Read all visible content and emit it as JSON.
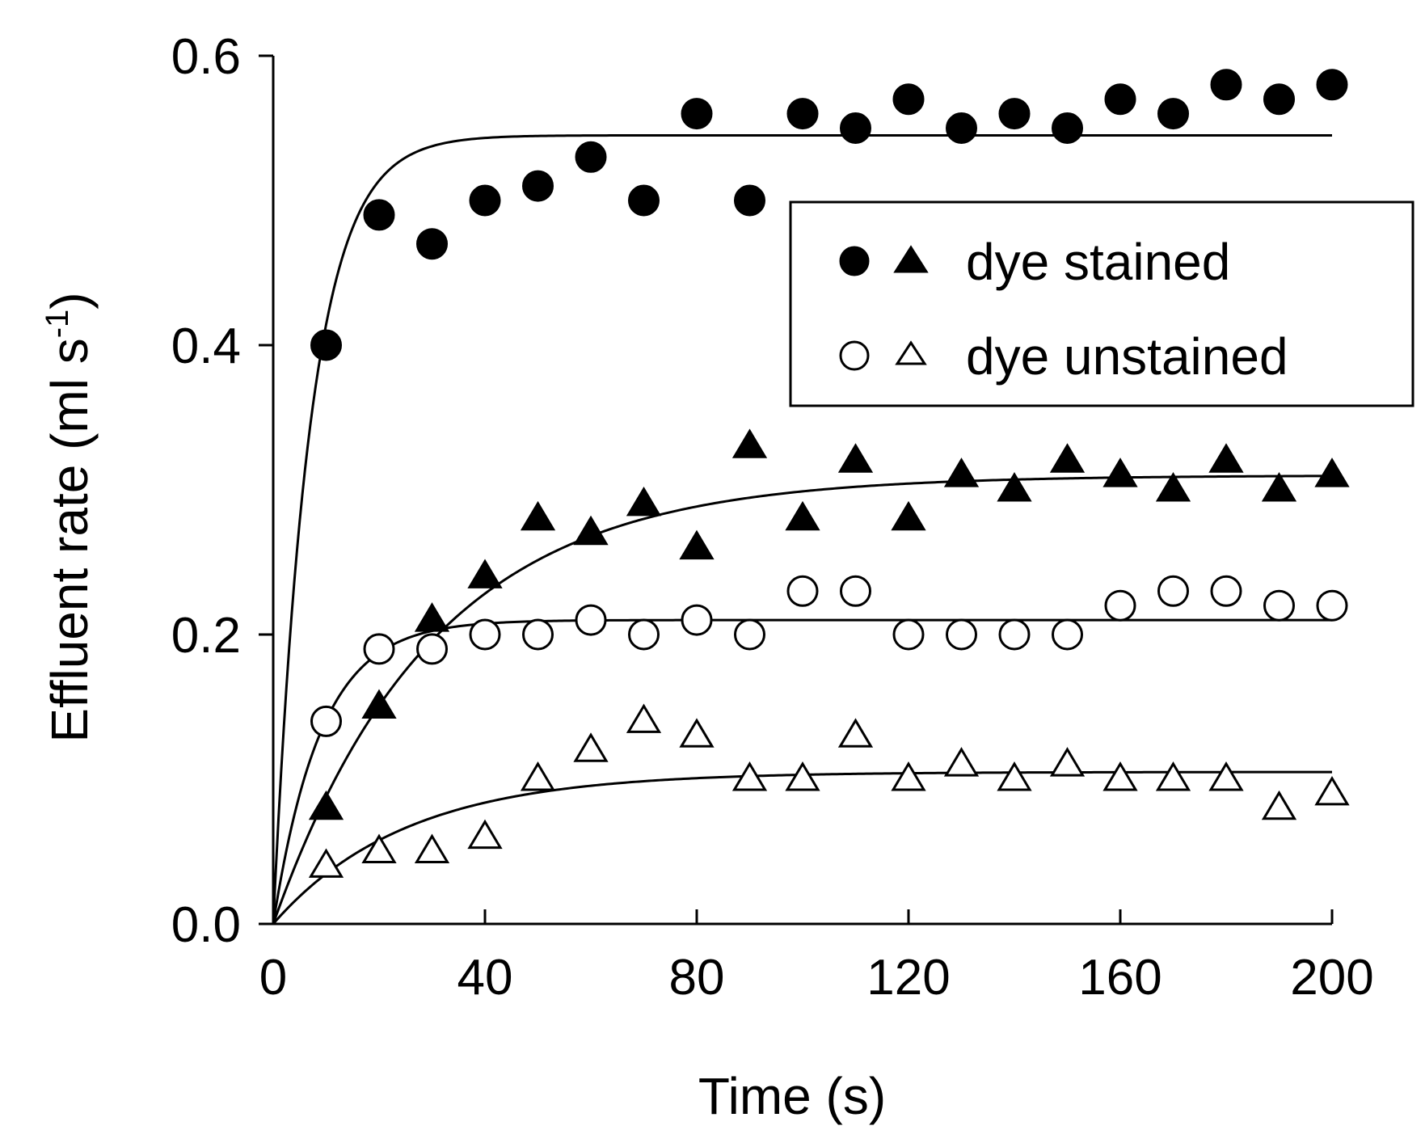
{
  "chart_data": {
    "type": "scatter",
    "title": "",
    "xlabel": "Time (s)",
    "ylabel_main": "Effluent rate (ml s",
    "ylabel_sup": "-1",
    "ylabel_close": ")",
    "xlim": [
      0,
      200
    ],
    "ylim": [
      0,
      0.6
    ],
    "xticks": [
      0,
      40,
      80,
      120,
      160,
      200
    ],
    "xtick_labels": [
      "0",
      "40",
      "80",
      "120",
      "160",
      "200"
    ],
    "yticks": [
      0,
      0.2,
      0.4,
      0.6
    ],
    "ytick_labels": [
      "0.0",
      "0.2",
      "0.4",
      "0.6"
    ],
    "grid": false,
    "legend": {
      "position": "top-right",
      "entries": [
        {
          "label": "dye stained",
          "markers": [
            "circle",
            "triangle"
          ],
          "fill": "filled"
        },
        {
          "label": "dye unstained",
          "markers": [
            "circle",
            "triangle"
          ],
          "fill": "open"
        }
      ]
    },
    "series": [
      {
        "name": "dye stained (circles)",
        "marker": "circle",
        "fill": "filled",
        "x": [
          10,
          20,
          30,
          40,
          50,
          60,
          70,
          80,
          90,
          100,
          110,
          120,
          130,
          140,
          150,
          160,
          170,
          180,
          190,
          200
        ],
        "y": [
          0.4,
          0.49,
          0.47,
          0.5,
          0.51,
          0.53,
          0.5,
          0.56,
          0.5,
          0.56,
          0.55,
          0.57,
          0.55,
          0.56,
          0.55,
          0.57,
          0.56,
          0.58,
          0.57,
          0.58
        ],
        "fit": {
          "model": "a*(1-exp(-t/tau))",
          "a": 0.545,
          "tau": 7
        }
      },
      {
        "name": "dye stained (triangles)",
        "marker": "triangle",
        "fill": "filled",
        "x": [
          10,
          20,
          30,
          40,
          50,
          60,
          70,
          80,
          90,
          100,
          110,
          120,
          130,
          140,
          150,
          160,
          170,
          180,
          190,
          200
        ],
        "y": [
          0.08,
          0.15,
          0.21,
          0.24,
          0.28,
          0.27,
          0.29,
          0.26,
          0.33,
          0.28,
          0.32,
          0.28,
          0.31,
          0.3,
          0.32,
          0.31,
          0.3,
          0.32,
          0.3,
          0.31
        ],
        "fit": {
          "model": "a*(1-exp(-t/tau))",
          "a": 0.31,
          "tau": 30
        }
      },
      {
        "name": "dye unstained (circles)",
        "marker": "circle",
        "fill": "open",
        "x": [
          10,
          20,
          30,
          40,
          50,
          60,
          70,
          80,
          90,
          100,
          110,
          120,
          130,
          140,
          150,
          160,
          170,
          180,
          190,
          200
        ],
        "y": [
          0.14,
          0.19,
          0.19,
          0.2,
          0.2,
          0.21,
          0.2,
          0.21,
          0.2,
          0.23,
          0.23,
          0.2,
          0.2,
          0.2,
          0.2,
          0.22,
          0.23,
          0.23,
          0.22,
          0.22
        ],
        "fit": {
          "model": "a*(1-exp(-t/tau))",
          "a": 0.21,
          "tau": 9
        }
      },
      {
        "name": "dye unstained (triangles)",
        "marker": "triangle",
        "fill": "open",
        "x": [
          10,
          20,
          30,
          40,
          50,
          60,
          70,
          80,
          90,
          100,
          110,
          120,
          130,
          140,
          150,
          160,
          170,
          180,
          190,
          200
        ],
        "y": [
          0.04,
          0.05,
          0.05,
          0.06,
          0.1,
          0.12,
          0.14,
          0.13,
          0.1,
          0.1,
          0.13,
          0.1,
          0.11,
          0.1,
          0.11,
          0.1,
          0.1,
          0.1,
          0.08,
          0.09
        ],
        "fit": {
          "model": "a*(1-exp(-t/tau))",
          "a": 0.105,
          "tau": 25
        }
      }
    ]
  }
}
